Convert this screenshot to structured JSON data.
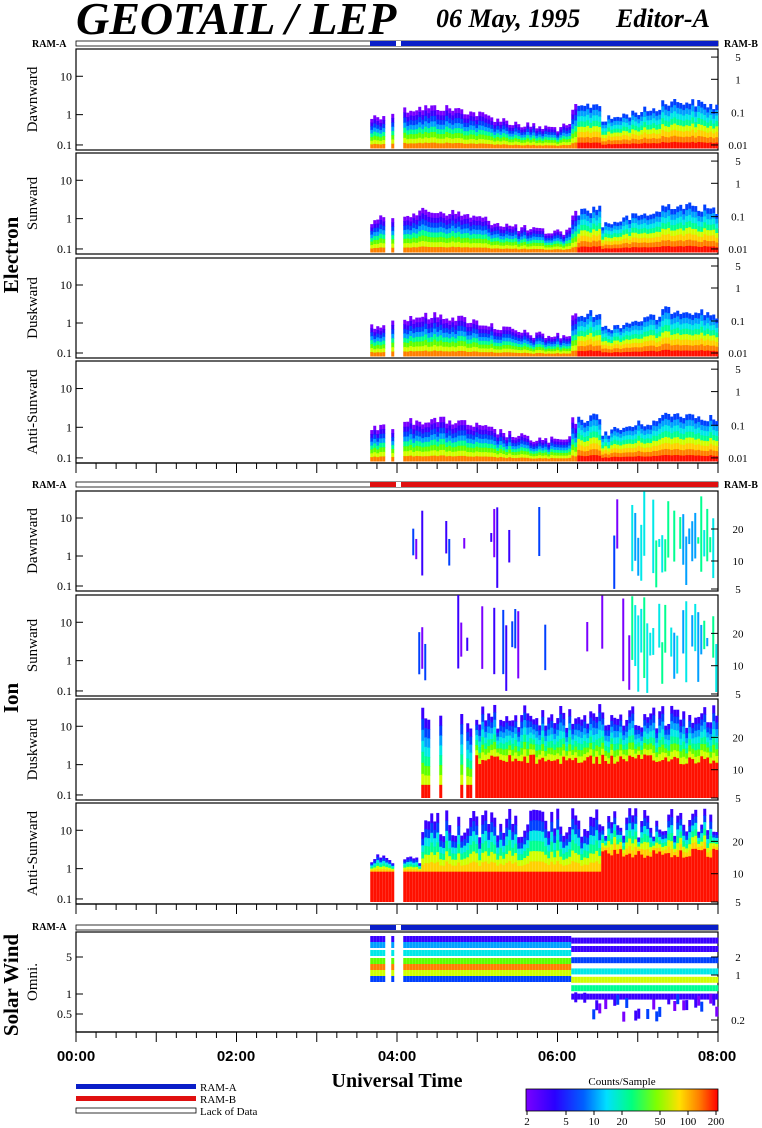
{
  "header": {
    "title": "GEOTAIL / LEP",
    "date": "06 May, 1995",
    "editor": "Editor-A"
  },
  "group_labels": {
    "electron": "Electron",
    "ion": "Ion",
    "solar_wind": "Solar Wind"
  },
  "ram_labels": {
    "left": "RAM-A",
    "right": "RAM-B"
  },
  "legend": {
    "ram_a": "RAM-A",
    "ram_b": "RAM-B",
    "lack": "Lack of Data"
  },
  "colorbar": {
    "title": "Counts/Sample",
    "ticks": [
      "2",
      "5",
      "10",
      "20",
      "50",
      "100",
      "200"
    ]
  },
  "colors": {
    "ram_a": "#0a1ec8",
    "ram_b": "#e01010",
    "frame": "#000000"
  },
  "chart_data": {
    "type": "heatmap",
    "xlabel": "Universal Time",
    "x_ticks": [
      "00:00",
      "02:00",
      "04:00",
      "06:00",
      "08:00"
    ],
    "xlim": [
      "00:00",
      "08:00"
    ],
    "data_start": "03:40",
    "panels": [
      {
        "group": "electron",
        "label": "Dawnward",
        "left_ticks": [
          "10",
          "1",
          "0.1"
        ],
        "right_ticks": [
          "5",
          "1",
          "0.1",
          "0.01"
        ],
        "band": "electron"
      },
      {
        "group": "electron",
        "label": "Sunward",
        "left_ticks": [
          "10",
          "1",
          "0.1"
        ],
        "right_ticks": [
          "5",
          "1",
          "0.1",
          "0.01"
        ],
        "band": "electron"
      },
      {
        "group": "electron",
        "label": "Duskward",
        "left_ticks": [
          "10",
          "1",
          "0.1"
        ],
        "right_ticks": [
          "5",
          "1",
          "0.1",
          "0.01"
        ],
        "band": "electron"
      },
      {
        "group": "electron",
        "label": "Anti-Sunward",
        "left_ticks": [
          "10",
          "1",
          "0.1"
        ],
        "right_ticks": [
          "5",
          "1",
          "0.1",
          "0.01"
        ],
        "band": "electron"
      },
      {
        "group": "ion",
        "label": "Dawnward",
        "left_ticks": [
          "10",
          "1",
          "0.1"
        ],
        "right_ticks": [
          "20",
          "10",
          "5"
        ],
        "band": "ion_sparse"
      },
      {
        "group": "ion",
        "label": "Sunward",
        "left_ticks": [
          "10",
          "1",
          "0.1"
        ],
        "right_ticks": [
          "20",
          "10",
          "5"
        ],
        "band": "ion_sparse"
      },
      {
        "group": "ion",
        "label": "Duskward",
        "left_ticks": [
          "10",
          "1",
          "0.1"
        ],
        "right_ticks": [
          "20",
          "10",
          "5"
        ],
        "band": "ion_dense"
      },
      {
        "group": "ion",
        "label": "Anti-Sunward",
        "left_ticks": [
          "10",
          "1",
          "0.1"
        ],
        "right_ticks": [
          "20",
          "10",
          "5"
        ],
        "band": "ion_full"
      },
      {
        "group": "solar_wind",
        "label": "Omni.",
        "left_ticks": [
          "5",
          "1",
          "0.5"
        ],
        "right_ticks": [
          "2",
          "1",
          "0.2"
        ],
        "band": "solar"
      }
    ]
  }
}
